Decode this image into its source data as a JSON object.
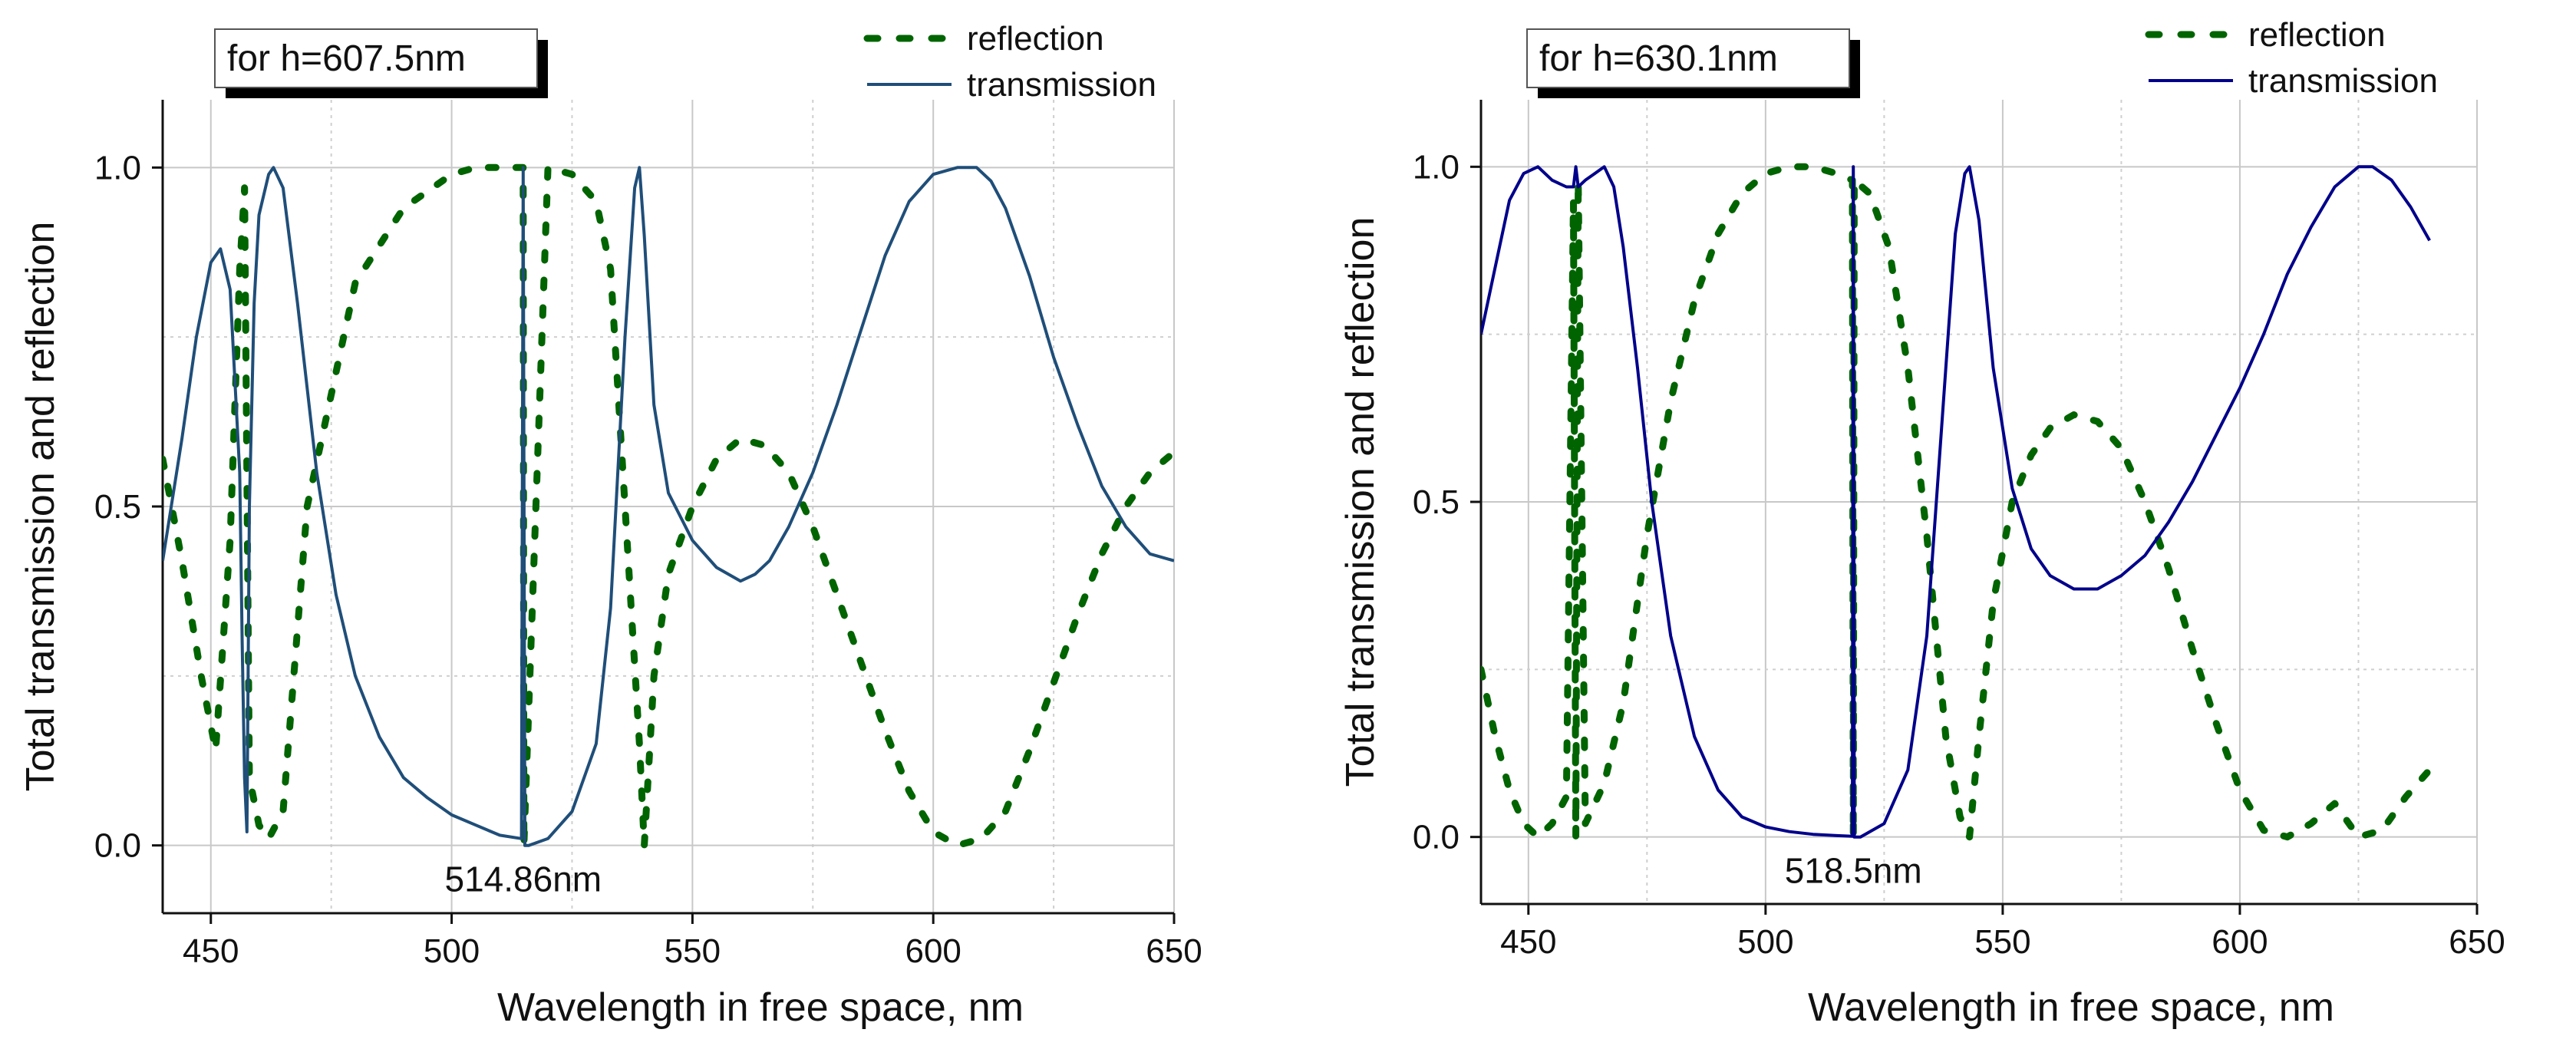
{
  "chart_data": [
    {
      "type": "line",
      "xlabel": "Wavelength in free space, nm",
      "ylabel": "Total transmission and reflection",
      "xlim": [
        440,
        650
      ],
      "ylim": [
        -0.1,
        1.1
      ],
      "x_ticks": [
        450,
        500,
        550,
        600,
        650
      ],
      "y_ticks": [
        0.0,
        0.5,
        1.0
      ],
      "x_tick_labels": [
        "450",
        "500",
        "550",
        "600",
        "650"
      ],
      "y_tick_labels": [
        "0.0",
        "0.5",
        "1.0"
      ],
      "grid": true,
      "legend_position": "top-right",
      "annotation_box": "for h=607.5nm",
      "annotation": {
        "text": "514.86nm",
        "x": 514.86
      },
      "series": [
        {
          "name": "reflection",
          "style": "dotted",
          "color": "#006400",
          "x": [
            440,
            444,
            448,
            451,
            454,
            456,
            457,
            458,
            460,
            462,
            465,
            470,
            480,
            490,
            500,
            505,
            510,
            514.86,
            515,
            520,
            525,
            530,
            533,
            536,
            539,
            540,
            542,
            545,
            550,
            555,
            560,
            565,
            570,
            575,
            580,
            585,
            590,
            595,
            600,
            605,
            610,
            615,
            620,
            625,
            630,
            635,
            640,
            645,
            650
          ],
          "y": [
            0.57,
            0.42,
            0.25,
            0.14,
            0.45,
            0.85,
            0.97,
            0.1,
            0.03,
            0.01,
            0.05,
            0.5,
            0.83,
            0.94,
            0.99,
            1.0,
            1.0,
            1.0,
            0.0,
            1.0,
            0.99,
            0.95,
            0.85,
            0.5,
            0.15,
            0.0,
            0.25,
            0.4,
            0.5,
            0.57,
            0.6,
            0.59,
            0.55,
            0.47,
            0.37,
            0.27,
            0.17,
            0.08,
            0.02,
            0.0,
            0.01,
            0.05,
            0.14,
            0.24,
            0.34,
            0.43,
            0.5,
            0.55,
            0.58
          ]
        },
        {
          "name": "transmission",
          "style": "solid",
          "color": "#1f4e79",
          "x": [
            440,
            444,
            447,
            450,
            452,
            454,
            456,
            456.5,
            457,
            457.5,
            458,
            459,
            460,
            462,
            463,
            465,
            468,
            472,
            476,
            480,
            485,
            490,
            495,
            500,
            505,
            510,
            514.5,
            514.86,
            515.2,
            516,
            520,
            525,
            530,
            533,
            536,
            538,
            539,
            540,
            542,
            545,
            550,
            555,
            560,
            563,
            566,
            570,
            575,
            580,
            585,
            590,
            595,
            600,
            605,
            609,
            612,
            615,
            620,
            625,
            630,
            635,
            640,
            645,
            650
          ],
          "y": [
            0.42,
            0.6,
            0.75,
            0.86,
            0.88,
            0.82,
            0.55,
            0.3,
            0.1,
            0.02,
            0.5,
            0.8,
            0.93,
            0.99,
            1.0,
            0.97,
            0.8,
            0.55,
            0.37,
            0.25,
            0.16,
            0.1,
            0.07,
            0.045,
            0.03,
            0.015,
            0.01,
            1.0,
            0.0,
            0.0,
            0.01,
            0.05,
            0.15,
            0.35,
            0.75,
            0.97,
            1.0,
            0.9,
            0.65,
            0.52,
            0.45,
            0.41,
            0.39,
            0.4,
            0.42,
            0.47,
            0.55,
            0.65,
            0.76,
            0.87,
            0.95,
            0.99,
            1.0,
            1.0,
            0.98,
            0.94,
            0.84,
            0.72,
            0.62,
            0.53,
            0.47,
            0.43,
            0.42
          ]
        }
      ]
    },
    {
      "type": "line",
      "xlabel": "Wavelength in free space, nm",
      "ylabel": "Total transmission and reflection",
      "xlim": [
        440,
        650
      ],
      "ylim": [
        -0.1,
        1.1
      ],
      "x_ticks": [
        450,
        500,
        550,
        600,
        650
      ],
      "y_ticks": [
        0.0,
        0.5,
        1.0
      ],
      "x_tick_labels": [
        "450",
        "500",
        "550",
        "600",
        "650"
      ],
      "y_tick_labels": [
        "0.0",
        "0.5",
        "1.0"
      ],
      "grid": true,
      "legend_position": "top-right",
      "annotation_box": "for h=630.1nm",
      "annotation": {
        "text": "518.5nm",
        "x": 518.5
      },
      "series": [
        {
          "name": "reflection",
          "style": "dotted",
          "color": "#006400",
          "x": [
            440,
            443,
            446,
            449,
            452,
            455,
            458,
            459.5,
            460,
            460.5,
            462,
            466,
            470,
            475,
            480,
            485,
            490,
            495,
            500,
            505,
            510,
            515,
            518.3,
            518.5,
            518.7,
            522,
            526,
            530,
            534,
            538,
            541,
            543,
            545,
            548,
            552,
            556,
            560,
            565,
            570,
            575,
            580,
            585,
            590,
            595,
            600,
            605,
            610,
            615,
            620,
            625,
            630,
            635,
            640
          ],
          "y": [
            0.25,
            0.15,
            0.07,
            0.02,
            0.0,
            0.02,
            0.06,
            0.95,
            0.0,
            0.98,
            0.02,
            0.08,
            0.2,
            0.45,
            0.65,
            0.8,
            0.9,
            0.96,
            0.99,
            1.0,
            1.0,
            0.99,
            0.98,
            0.0,
            0.98,
            0.96,
            0.88,
            0.7,
            0.45,
            0.15,
            0.03,
            0.0,
            0.15,
            0.35,
            0.5,
            0.57,
            0.61,
            0.63,
            0.62,
            0.58,
            0.5,
            0.4,
            0.28,
            0.17,
            0.07,
            0.01,
            0.0,
            0.02,
            0.05,
            0.0,
            0.01,
            0.06,
            0.1
          ]
        },
        {
          "name": "transmission",
          "style": "solid",
          "color": "#00008b",
          "x": [
            440,
            443,
            446,
            449,
            452,
            455,
            458,
            459.5,
            460,
            460.5,
            462,
            464,
            466,
            468,
            470,
            473,
            476,
            480,
            485,
            490,
            495,
            500,
            505,
            510,
            515,
            518.3,
            518.5,
            518.7,
            520,
            525,
            530,
            534,
            537,
            540,
            542,
            543,
            545,
            548,
            552,
            556,
            560,
            565,
            570,
            575,
            580,
            585,
            590,
            595,
            600,
            605,
            610,
            615,
            620,
            625,
            628,
            632,
            636,
            640
          ],
          "y": [
            0.75,
            0.85,
            0.95,
            0.99,
            1.0,
            0.98,
            0.97,
            0.97,
            1.0,
            0.97,
            0.98,
            0.99,
            1.0,
            0.97,
            0.88,
            0.7,
            0.5,
            0.3,
            0.15,
            0.07,
            0.03,
            0.015,
            0.008,
            0.004,
            0.002,
            0.001,
            1.0,
            0.0,
            0.0,
            0.02,
            0.1,
            0.3,
            0.6,
            0.9,
            0.99,
            1.0,
            0.92,
            0.7,
            0.52,
            0.43,
            0.39,
            0.37,
            0.37,
            0.39,
            0.42,
            0.47,
            0.53,
            0.6,
            0.67,
            0.75,
            0.84,
            0.91,
            0.97,
            1.0,
            1.0,
            0.98,
            0.94,
            0.89
          ]
        }
      ]
    }
  ]
}
